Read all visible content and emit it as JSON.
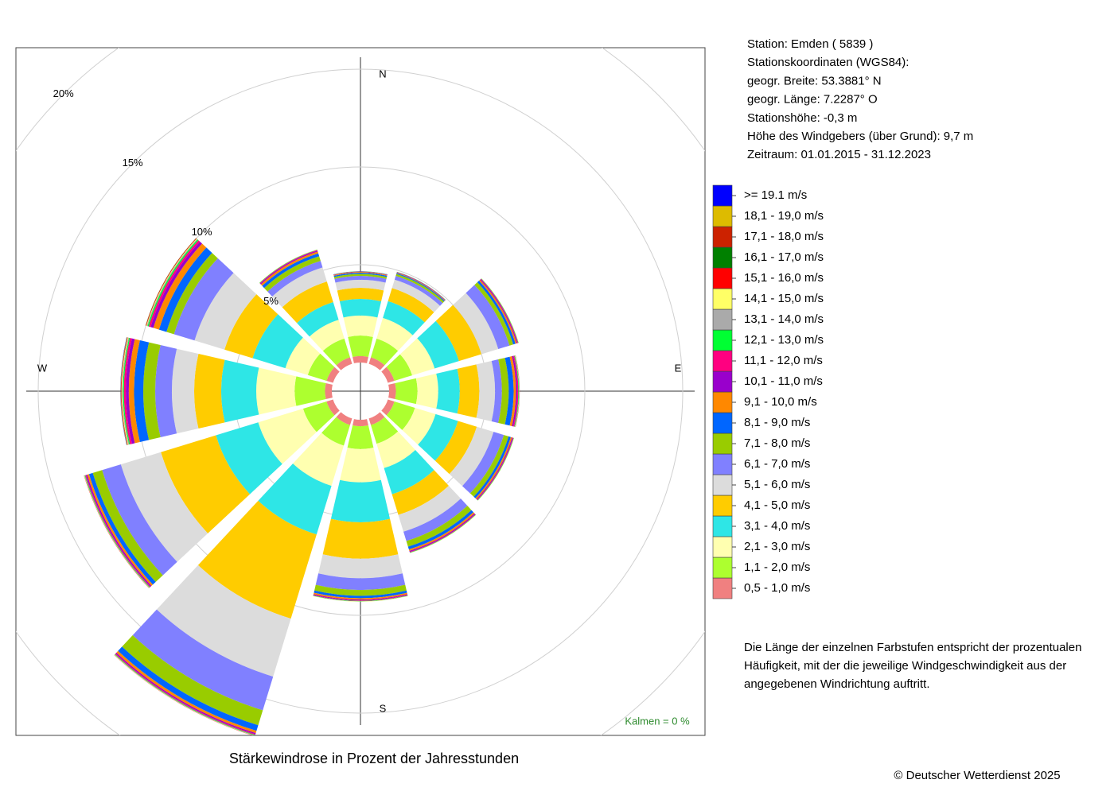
{
  "chart_data": {
    "type": "windrose",
    "title": "Stärkewindrose in Prozent der Jahresstunden",
    "categories": [
      "N",
      null,
      null,
      "E",
      null,
      null,
      "S",
      null,
      null,
      "W",
      null,
      null
    ],
    "rlim": [
      0,
      20
    ],
    "rticks": [
      {
        "value": 5,
        "label": "5%"
      },
      {
        "value": 10,
        "label": "10%"
      },
      {
        "value": 15,
        "label": "15%"
      },
      {
        "value": 20,
        "label": "20%"
      }
    ],
    "grid": true,
    "legend": "right",
    "calm_label": "Kalmen  =  0 %",
    "series": [
      {
        "name": "0,5 - 1,0 m/s",
        "color": "#f08080",
        "values": [
          0.33,
          0.35,
          0.35,
          0.35,
          0.35,
          0.35,
          0.33,
          0.35,
          0.35,
          0.35,
          0.35,
          0.35
        ]
      },
      {
        "name": "1,1 - 2,0 m/s",
        "color": "#adff2f",
        "values": [
          1.05,
          1.0,
          0.95,
          1.1,
          1.1,
          1.0,
          1.17,
          1.1,
          1.25,
          1.55,
          1.0,
          1.0
        ]
      },
      {
        "name": "2,1 - 3,0 m/s",
        "color": "#ffffb0",
        "values": [
          1.02,
          1.1,
          1.2,
          1.06,
          1.1,
          1.3,
          1.7,
          2.15,
          2.4,
          1.96,
          1.2,
          1.0
        ]
      },
      {
        "name": "3,1 - 4,0 m/s",
        "color": "#2ee6e6",
        "values": [
          0.85,
          0.9,
          1.3,
          1.1,
          1.2,
          1.4,
          2.04,
          2.6,
          2.26,
          1.79,
          1.75,
          0.95
        ]
      },
      {
        "name": "4,1 - 5,0 m/s",
        "color": "#ffcc00",
        "values": [
          0.57,
          0.7,
          1.2,
          1.0,
          1.0,
          1.1,
          1.86,
          4.5,
          2.94,
          1.38,
          1.5,
          1.1
        ]
      },
      {
        "name": "5,1 - 6,0 m/s",
        "color": "#dcdcdc",
        "values": [
          0.41,
          0.45,
          0.9,
          0.8,
          0.9,
          0.9,
          1.0,
          3.1,
          2.14,
          1.14,
          1.6,
          0.75
        ]
      },
      {
        "name": "6,1 - 7,0 m/s",
        "color": "#8080ff",
        "values": [
          0.2,
          0.2,
          0.6,
          0.35,
          0.55,
          0.5,
          0.6,
          1.8,
          1.0,
          0.85,
          1.1,
          0.35
        ]
      },
      {
        "name": "7,1 - 8,0 m/s",
        "color": "#99cc00",
        "values": [
          0.1,
          0.1,
          0.2,
          0.35,
          0.25,
          0.3,
          0.3,
          0.8,
          0.5,
          0.61,
          0.4,
          0.25
        ]
      },
      {
        "name": "8,1 - 9,0 m/s",
        "color": "#0066ff",
        "values": [
          0.06,
          0.05,
          0.12,
          0.25,
          0.12,
          0.15,
          0.12,
          0.3,
          0.2,
          0.47,
          0.4,
          0.15
        ]
      },
      {
        "name": "9,1 - 10,0 m/s",
        "color": "#ff8800",
        "values": [
          0.04,
          0.03,
          0.07,
          0.12,
          0.07,
          0.08,
          0.07,
          0.12,
          0.1,
          0.27,
          0.3,
          0.1
        ]
      },
      {
        "name": "10,1 - 11,0 m/s",
        "color": "#9900cc",
        "values": [
          0.02,
          0.02,
          0.04,
          0.07,
          0.04,
          0.05,
          0.04,
          0.06,
          0.06,
          0.15,
          0.15,
          0.05
        ]
      },
      {
        "name": "11,1 - 12,0 m/s",
        "color": "#ff0080",
        "values": [
          0.01,
          0.01,
          0.03,
          0.05,
          0.03,
          0.03,
          0.03,
          0.04,
          0.04,
          0.1,
          0.1,
          0.03
        ]
      },
      {
        "name": "12,1 - 13,0 m/s",
        "color": "#00ff33",
        "values": [
          0.01,
          0.01,
          0.02,
          0.03,
          0.02,
          0.02,
          0.02,
          0.03,
          0.03,
          0.05,
          0.06,
          0.02
        ]
      },
      {
        "name": "13,1 - 14,0 m/s",
        "color": "#aaaaaa",
        "values": [
          0,
          0,
          0.01,
          0.02,
          0.01,
          0.01,
          0.01,
          0.02,
          0.02,
          0.04,
          0.04,
          0.01
        ]
      },
      {
        "name": "14,1 - 15,0 m/s",
        "color": "#ffff66",
        "values": [
          0,
          0,
          0.01,
          0.01,
          0.01,
          0.01,
          0.01,
          0.01,
          0.01,
          0.03,
          0.03,
          0.01
        ]
      },
      {
        "name": "15,1 - 16,0 m/s",
        "color": "#ff0000",
        "values": [
          0,
          0,
          0,
          0.01,
          0,
          0,
          0,
          0.01,
          0.01,
          0.02,
          0.02,
          0
        ]
      },
      {
        "name": "16,1 - 17,0 m/s",
        "color": "#008000",
        "values": [
          0,
          0,
          0,
          0,
          0,
          0,
          0,
          0,
          0,
          0.01,
          0.01,
          0
        ]
      },
      {
        "name": "17,1 - 18,0 m/s",
        "color": "#cc2200",
        "values": [
          0,
          0,
          0,
          0,
          0,
          0,
          0,
          0,
          0,
          0.01,
          0.01,
          0
        ]
      },
      {
        "name": "18,1 - 19,0 m/s",
        "color": "#ddbb00",
        "values": [
          0,
          0,
          0,
          0,
          0,
          0,
          0,
          0,
          0,
          0.01,
          0,
          0
        ]
      },
      {
        "name": ">= 19.1 m/s",
        "color": "#0000ff",
        "values": [
          0,
          0,
          0,
          0,
          0,
          0,
          0,
          0,
          0,
          0.01,
          0,
          0
        ]
      }
    ]
  },
  "station_info": [
    "Station:  Emden  ( 5839 )",
    "Stationskoordinaten (WGS84):",
    "geogr. Breite: 53.3881° N",
    "geogr. Länge:   7.2287° O",
    "Stationshöhe: -0,3 m",
    "Höhe des Windgebers (über Grund): 9,7 m",
    "Zeitraum: 01.01.2015 - 31.12.2023"
  ],
  "description": [
    "Die Länge der einzelnen Farbstufen entspricht der prozentualen",
    "Häufigkeit, mit der die jeweilige Windgeschwindigkeit aus der",
    "angegebenen Windrichtung auftritt."
  ],
  "copyright": "© Deutscher Wetterdienst  2025"
}
